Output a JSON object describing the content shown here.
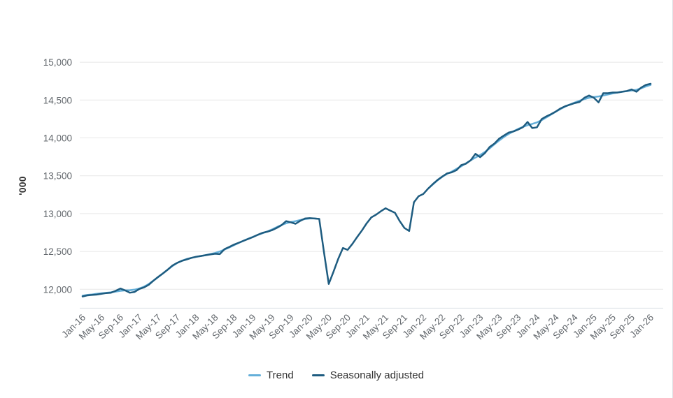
{
  "chart": {
    "y_axis_title": "'000",
    "legend": [
      {
        "label": "Trend"
      },
      {
        "label": "Seasonally adjusted"
      }
    ]
  },
  "chart_data": {
    "type": "line",
    "title": "",
    "xlabel": "",
    "ylabel": "'000",
    "ylim": [
      11750,
      15250
    ],
    "grid": true,
    "legend_position": "bottom-center",
    "colors": {
      "grid": "#e7e7e7",
      "axis_line": "#dde2e7",
      "tick_text": "#63686d"
    },
    "y_ticks": [
      {
        "value": 12000,
        "label": "12,000"
      },
      {
        "value": 12500,
        "label": "12,500"
      },
      {
        "value": 13000,
        "label": "13,000"
      },
      {
        "value": 13500,
        "label": "13,500"
      },
      {
        "value": 14000,
        "label": "14,000"
      },
      {
        "value": 14500,
        "label": "14,500"
      },
      {
        "value": 15000,
        "label": "15,000"
      }
    ],
    "x_tick_every_n_months": 4,
    "x_tick_labels": [
      "Jan-16",
      "May-16",
      "Sep-16",
      "Jan-17",
      "May-17",
      "Sep-17",
      "Jan-18",
      "May-18",
      "Sep-18",
      "Jan-19",
      "May-19",
      "Sep-19",
      "Jan-20",
      "May-20",
      "Sep-20",
      "Jan-21",
      "May-21",
      "Sep-21",
      "Jan-22",
      "May-22",
      "Sep-22",
      "Jan-23",
      "May-23",
      "Sep-23",
      "Jan-24",
      "May-24",
      "Sep-24",
      "Jan-25",
      "May-25",
      "Sep-25",
      "Jan-26"
    ],
    "x_start": "Jan-16",
    "x_end": "Jan-26",
    "series": [
      {
        "name": "Trend",
        "color": "#64afd9",
        "note": "suspended Apr-2020 to Jan-2022",
        "values": [
          11915,
          11925,
          11932,
          11940,
          11947,
          11953,
          11960,
          11970,
          11980,
          11985,
          11988,
          11995,
          12010,
          12035,
          12070,
          12115,
          12162,
          12210,
          12260,
          12308,
          12348,
          12378,
          12400,
          12415,
          12428,
          12440,
          12452,
          12465,
          12480,
          12500,
          12525,
          12553,
          12583,
          12613,
          12642,
          12668,
          12693,
          12718,
          12740,
          12763,
          12790,
          12820,
          12850,
          12872,
          12888,
          12900,
          12915,
          12928,
          12935,
          12935,
          12930,
          null,
          null,
          null,
          null,
          null,
          null,
          null,
          null,
          null,
          null,
          null,
          null,
          null,
          null,
          null,
          null,
          null,
          null,
          null,
          null,
          null,
          null,
          13330,
          13385,
          13440,
          13487,
          13525,
          13555,
          13590,
          13625,
          13665,
          13705,
          13740,
          13775,
          13815,
          13862,
          13915,
          13965,
          14012,
          14052,
          14088,
          14118,
          14145,
          14168,
          14185,
          14205,
          14235,
          14272,
          14310,
          14348,
          14383,
          14415,
          14443,
          14468,
          14492,
          14513,
          14530,
          14540,
          14548,
          14560,
          14574,
          14588,
          14600,
          14610,
          14618,
          14626,
          14636,
          14655,
          14680,
          14700
        ]
      },
      {
        "name": "Seasonally adjusted",
        "color": "#1e5c80",
        "values": [
          11905,
          11920,
          11925,
          11930,
          11940,
          11950,
          11955,
          11980,
          12010,
          11985,
          11955,
          11965,
          12005,
          12025,
          12060,
          12115,
          12165,
          12210,
          12260,
          12315,
          12350,
          12375,
          12395,
          12415,
          12430,
          12440,
          12450,
          12460,
          12470,
          12465,
          12530,
          12560,
          12590,
          12615,
          12640,
          12665,
          12690,
          12720,
          12745,
          12760,
          12780,
          12810,
          12845,
          12900,
          12885,
          12865,
          12905,
          12935,
          12940,
          12935,
          12930,
          12490,
          12070,
          12230,
          12400,
          12545,
          12520,
          12600,
          12690,
          12775,
          12870,
          12950,
          12985,
          13030,
          13070,
          13040,
          13010,
          12900,
          12810,
          12770,
          13150,
          13230,
          13260,
          13330,
          13390,
          13445,
          13490,
          13530,
          13545,
          13575,
          13640,
          13660,
          13705,
          13790,
          13745,
          13800,
          13880,
          13925,
          13990,
          14030,
          14070,
          14085,
          14110,
          14140,
          14210,
          14130,
          14140,
          14250,
          14285,
          14315,
          14350,
          14390,
          14420,
          14440,
          14460,
          14475,
          14530,
          14560,
          14530,
          14470,
          14590,
          14590,
          14600,
          14600,
          14610,
          14620,
          14640,
          14610,
          14665,
          14700,
          14715
        ]
      }
    ]
  }
}
